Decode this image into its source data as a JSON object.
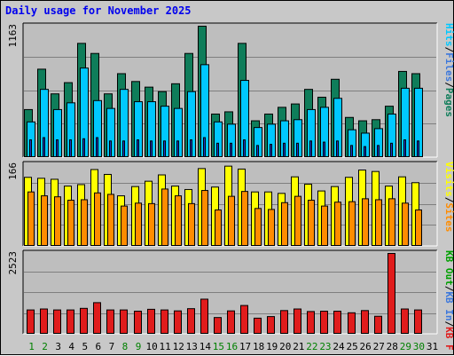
{
  "title": "Daily usage for November 2025",
  "colors": {
    "background": "#c8c8c8",
    "plot": "#bebebe",
    "hits": "#0f7d5a",
    "files": "#00c8ff",
    "pages": "#1a3cd2",
    "visits": "#ffff00",
    "sites": "#ff8c00",
    "kbf": "#e01c1c",
    "kbin": "#3c78dc",
    "kbout": "#00a000",
    "title": "#0000ee",
    "weekend_day": "#008000"
  },
  "chart_data": [
    {
      "type": "bar",
      "name": "hits-files-pages",
      "axis_max_label": "1163",
      "right_labels": [
        "Pages",
        "/",
        "Files",
        "/",
        "Hits"
      ],
      "ylim": [
        0,
        1163
      ],
      "grid": true,
      "categories": [
        "1",
        "2",
        "3",
        "4",
        "5",
        "6",
        "7",
        "8",
        "9",
        "10",
        "11",
        "12",
        "13",
        "14",
        "15",
        "16",
        "17",
        "18",
        "19",
        "20",
        "21",
        "22",
        "23",
        "24",
        "25",
        "26",
        "27",
        "28",
        "29",
        "30",
        "31"
      ],
      "series": [
        {
          "name": "Hits",
          "values": [
            420,
            780,
            560,
            660,
            1010,
            920,
            560,
            740,
            670,
            620,
            580,
            650,
            920,
            1163,
            380,
            400,
            1010,
            320,
            380,
            440,
            470,
            600,
            530,
            690,
            350,
            320,
            330,
            450,
            760,
            740,
            0
          ]
        },
        {
          "name": "Files",
          "values": [
            310,
            600,
            420,
            480,
            790,
            500,
            430,
            600,
            490,
            490,
            450,
            430,
            580,
            820,
            310,
            290,
            680,
            260,
            290,
            320,
            330,
            420,
            440,
            520,
            240,
            210,
            250,
            380,
            610,
            610,
            0
          ]
        },
        {
          "name": "Pages",
          "values": [
            150,
            170,
            150,
            150,
            160,
            170,
            140,
            140,
            150,
            140,
            140,
            140,
            150,
            170,
            120,
            120,
            150,
            100,
            110,
            120,
            120,
            140,
            130,
            140,
            100,
            90,
            100,
            120,
            150,
            140,
            0
          ]
        }
      ]
    },
    {
      "type": "bar",
      "name": "visits-sites",
      "axis_max_label": "166",
      "right_labels": [
        "Sites",
        "/",
        "Visits"
      ],
      "ylim": [
        0,
        166
      ],
      "grid": true,
      "categories": [
        "1",
        "2",
        "3",
        "4",
        "5",
        "6",
        "7",
        "8",
        "9",
        "10",
        "11",
        "12",
        "13",
        "14",
        "15",
        "16",
        "17",
        "18",
        "19",
        "20",
        "21",
        "22",
        "23",
        "24",
        "25",
        "26",
        "27",
        "28",
        "29",
        "30",
        "31"
      ],
      "series": [
        {
          "name": "Visits",
          "values": [
            140,
            138,
            136,
            122,
            125,
            156,
            146,
            102,
            121,
            132,
            145,
            122,
            115,
            158,
            120,
            163,
            157,
            110,
            110,
            107,
            141,
            126,
            112,
            121,
            140,
            155,
            152,
            122,
            141,
            129,
            0
          ]
        },
        {
          "name": "Sites",
          "values": [
            110,
            102,
            100,
            93,
            94,
            108,
            105,
            81,
            87,
            86,
            116,
            102,
            86,
            113,
            73,
            101,
            111,
            76,
            74,
            88,
            101,
            93,
            81,
            89,
            90,
            96,
            94,
            96,
            87,
            73,
            0
          ]
        }
      ]
    },
    {
      "type": "bar",
      "name": "kbytes",
      "axis_max_label": "2523",
      "right_labels": [
        "KB F",
        "/",
        "KB In",
        "/",
        "KB Out"
      ],
      "ylim": [
        0,
        2523
      ],
      "grid": true,
      "categories": [
        "1",
        "2",
        "3",
        "4",
        "5",
        "6",
        "7",
        "8",
        "9",
        "10",
        "11",
        "12",
        "13",
        "14",
        "15",
        "16",
        "17",
        "18",
        "19",
        "20",
        "21",
        "22",
        "23",
        "24",
        "25",
        "26",
        "27",
        "28",
        "29",
        "30",
        "31"
      ],
      "series": [
        {
          "name": "KB F",
          "values": [
            740,
            770,
            740,
            740,
            790,
            970,
            740,
            740,
            700,
            760,
            740,
            710,
            780,
            1080,
            500,
            710,
            880,
            480,
            530,
            720,
            770,
            690,
            700,
            700,
            650,
            720,
            540,
            2523,
            770,
            740,
            0
          ]
        }
      ]
    }
  ],
  "weekend_days": [
    "1",
    "8",
    "15",
    "22",
    "29",
    "2",
    "9",
    "16",
    "23",
    "30"
  ],
  "x_labels": [
    "1",
    "2",
    "3",
    "4",
    "5",
    "6",
    "7",
    "8",
    "9",
    "10",
    "11",
    "12",
    "13",
    "14",
    "15",
    "16",
    "17",
    "18",
    "19",
    "20",
    "21",
    "22",
    "23",
    "24",
    "25",
    "26",
    "27",
    "28",
    "29",
    "30",
    "31"
  ]
}
